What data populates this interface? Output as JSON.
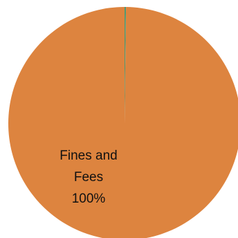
{
  "chart_data": {
    "type": "pie",
    "title": "",
    "slices": [
      {
        "label": "Fines and Fees",
        "value": 99.8,
        "display_label": [
          "Fines and",
          "Fees",
          "100%"
        ],
        "color": "#DD843F"
      },
      {
        "label": "",
        "value": 0.2,
        "color": "#4E9A72"
      }
    ],
    "legend": "none"
  }
}
